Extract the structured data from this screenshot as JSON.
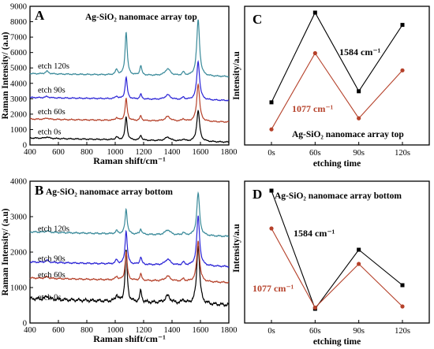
{
  "chart_data": [
    {
      "type": "line",
      "panel_letter": "A",
      "title": "Ag-SiO₂ nanomace array top",
      "xlabel": "Raman shift/cm⁻¹",
      "ylabel": "Raman Intensity/ (a.u)",
      "xlim": [
        400,
        1800
      ],
      "ylim": [
        0,
        9000
      ],
      "xticks": [
        "400",
        "600",
        "800",
        "1000",
        "1200",
        "1400",
        "1600",
        "1800"
      ],
      "yticks": [
        "0",
        "1000",
        "2000",
        "3000",
        "4000",
        "5000",
        "6000",
        "7000",
        "8000",
        "9000"
      ],
      "grid": false,
      "legend": "curve labels on left",
      "series": [
        {
          "name": "etch 0s",
          "color": "#000000",
          "offset": 200,
          "peaks": {
            "1077": 1700,
            "1584": 2200
          }
        },
        {
          "name": "etch 60s",
          "color": "#b5412a",
          "offset": 1500,
          "peaks": {
            "1077": 2900,
            "1584": 3950
          }
        },
        {
          "name": "etch 90s",
          "color": "#2c25d6",
          "offset": 2900,
          "peaks": {
            "1077": 4300,
            "1584": 5400
          }
        },
        {
          "name": "etch 120s",
          "color": "#3a8a9a",
          "offset": 4450,
          "peaks": {
            "1077": 7250,
            "1584": 8100
          }
        }
      ]
    },
    {
      "type": "line",
      "panel_letter": "B",
      "title": "Ag-SiO₂ nanomace array bottom",
      "xlabel": "Raman shift/cm⁻¹",
      "ylabel": "Raman Intensity/ (a.u)",
      "xlim": [
        400,
        1800
      ],
      "ylim": [
        0,
        4000
      ],
      "xticks": [
        "400",
        "600",
        "800",
        "1000",
        "1200",
        "1400",
        "1600",
        "1800"
      ],
      "yticks": [
        "0",
        "1000",
        "2000",
        "3000",
        "4000"
      ],
      "grid": false,
      "legend": "curve labels on left",
      "series": [
        {
          "name": "etch 0s",
          "color": "#000000",
          "offset": 520,
          "peaks": {
            "1077": 1950,
            "1584": 2200
          }
        },
        {
          "name": "etch 60s",
          "color": "#b5412a",
          "offset": 1150,
          "peaks": {
            "1077": 1950,
            "1584": 2300
          }
        },
        {
          "name": "etch 90s",
          "color": "#2c25d6",
          "offset": 1600,
          "peaks": {
            "1077": 2550,
            "1584": 3000
          }
        },
        {
          "name": "etch 120s",
          "color": "#3a8a9a",
          "offset": 2450,
          "peaks": {
            "1077": 3150,
            "1584": 3650
          }
        }
      ]
    },
    {
      "type": "line",
      "panel_letter": "C",
      "title": "Ag-SiO₂ nanomace array top",
      "xlabel": "etching time",
      "ylabel": "Intensity/a.u",
      "categories": [
        "0s",
        "60s",
        "90s",
        "120s"
      ],
      "ylim": [
        0,
        1
      ],
      "series": [
        {
          "name": "1584 cm⁻¹",
          "color": "#000000",
          "marker": "square",
          "values": [
            0.27,
            1.0,
            0.36,
            0.9
          ]
        },
        {
          "name": "1077 cm⁻¹",
          "color": "#b5412a",
          "marker": "circle",
          "values": [
            0.05,
            0.67,
            0.14,
            0.53
          ]
        }
      ]
    },
    {
      "type": "line",
      "panel_letter": "D",
      "title": "Ag-SiO₂ nanomace array bottom",
      "xlabel": "etching time",
      "ylabel": "Intensity/a.u",
      "categories": [
        "0s",
        "60s",
        "90s",
        "120s"
      ],
      "ylim": [
        0,
        1
      ],
      "series": [
        {
          "name": "1584 cm⁻¹",
          "color": "#000000",
          "marker": "square",
          "values": [
            1.0,
            0.0,
            0.5,
            0.2
          ]
        },
        {
          "name": "1077 cm⁻¹",
          "color": "#b5412a",
          "marker": "circle",
          "values": [
            0.68,
            0.01,
            0.38,
            0.02
          ]
        }
      ]
    }
  ]
}
